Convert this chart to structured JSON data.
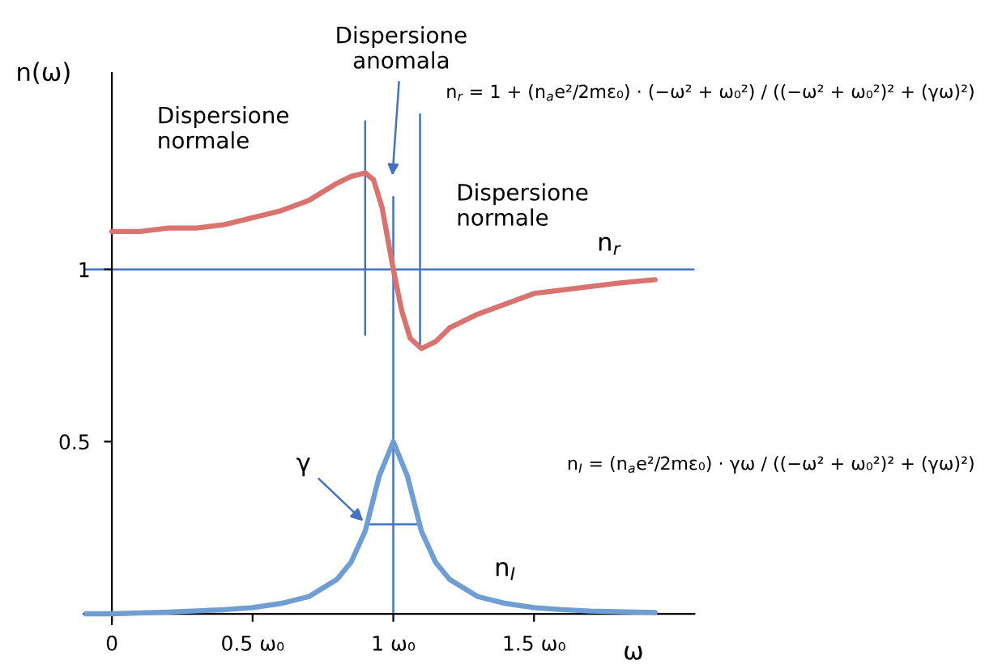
{
  "chart_data": {
    "type": "line",
    "xlabel": "ω",
    "ylabel": "n(ω)",
    "xlim": [
      -0.1,
      2.07
    ],
    "ylim": [
      -0.03,
      1.57
    ],
    "xticks": [
      {
        "value": 0,
        "label": "0"
      },
      {
        "value": 0.5,
        "label": "0.5 ω₀"
      },
      {
        "value": 1,
        "label": "1 ω₀"
      },
      {
        "value": 1.5,
        "label": "1.5 ω₀"
      }
    ],
    "yticks": [
      0.5,
      1
    ],
    "grid": false,
    "marker": "none",
    "line_style": "solid",
    "series": [
      {
        "color": "#d9736f",
        "x": [
          0,
          0.1,
          0.2,
          0.3,
          0.4,
          0.5,
          0.6,
          0.7,
          0.8,
          0.85,
          0.9,
          0.93,
          0.96,
          1.0,
          1.03,
          1.06,
          1.1,
          1.15,
          1.2,
          1.3,
          1.4,
          1.5,
          1.6,
          1.7,
          1.8,
          1.93
        ],
        "values": [
          1.11,
          1.11,
          1.12,
          1.12,
          1.13,
          1.15,
          1.17,
          1.2,
          1.25,
          1.27,
          1.28,
          1.26,
          1.18,
          1.0,
          0.88,
          0.8,
          0.77,
          0.79,
          0.83,
          0.87,
          0.9,
          0.93,
          0.94,
          0.95,
          0.96,
          0.97
        ]
      },
      {
        "color": "#6f9fd2",
        "x": [
          -0.1,
          0,
          0.2,
          0.4,
          0.5,
          0.6,
          0.7,
          0.8,
          0.85,
          0.9,
          0.95,
          1.0,
          1.05,
          1.1,
          1.15,
          1.2,
          1.3,
          1.4,
          1.5,
          1.6,
          1.7,
          1.93
        ],
        "values": [
          0,
          0,
          0.005,
          0.012,
          0.018,
          0.03,
          0.05,
          0.1,
          0.15,
          0.24,
          0.4,
          0.5,
          0.4,
          0.24,
          0.15,
          0.1,
          0.05,
          0.03,
          0.018,
          0.012,
          0.008,
          0.004
        ]
      },
      {
        "color": "#4472c4",
        "x": [
          0.9,
          0.9
        ],
        "values": [
          1.43,
          0.81
        ]
      },
      {
        "color": "#4472c4",
        "x": [
          1,
          1
        ],
        "values": [
          1.21,
          0
        ]
      },
      {
        "color": "#4472c4",
        "x": [
          1.095,
          1.095
        ],
        "values": [
          1.45,
          0.77
        ]
      },
      {
        "color": "#4472c4",
        "x": [
          0.905,
          1.09
        ],
        "values": [
          0.26,
          0.26
        ]
      }
    ],
    "ref_lines": [
      {
        "axis": "y",
        "value": 1,
        "color": "#4472c4"
      }
    ],
    "annotations": [
      "Dispersione\nnormale",
      "Dispersione\nanomala",
      "Dispersione\nnormale",
      {
        "text": "γ",
        "x": 0.905,
        "y": 0.26
      },
      "n$_{r}$",
      "n$_{I}$",
      "n$_{r}$ = 1 + (n$_{a}$e²/2mε₀) · (−ω² + ω₀²) / ((−ω² + ω₀²)² + (γω)²)",
      "n$_{I}$ = (n$_{a}$e²/2mε₀) · γω / ((−ω² + ω₀²)² + (γω)²)"
    ]
  }
}
